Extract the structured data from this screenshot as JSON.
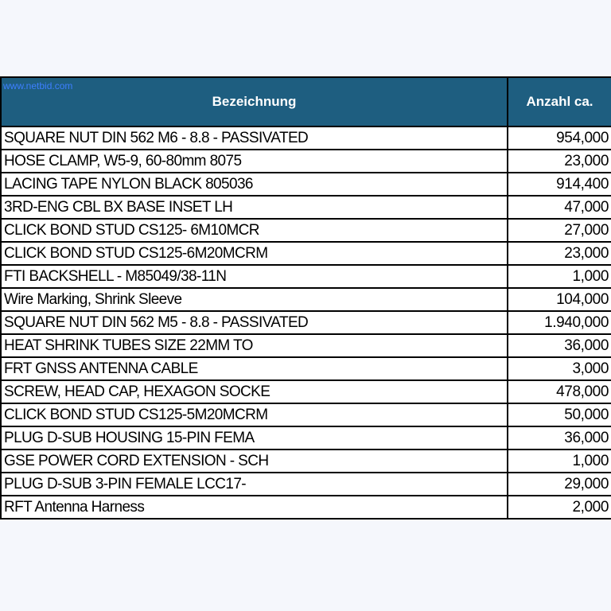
{
  "watermark": "www.netbid.com",
  "table": {
    "headers": {
      "name": "Bezeichnung",
      "quantity": "Anzahl ca."
    },
    "rows": [
      {
        "name": "SQUARE NUT DIN 562 M6 - 8.8 - PASSIVATED",
        "quantity": "954,000"
      },
      {
        "name": "HOSE CLAMP, W5-9, 60-80mm 8075",
        "quantity": "23,000"
      },
      {
        "name": "LACING TAPE NYLON BLACK 805036",
        "quantity": "914,400"
      },
      {
        "name": "3RD-ENG CBL BX BASE INSET LH",
        "quantity": "47,000"
      },
      {
        "name": "CLICK BOND STUD CS125- 6M10MCR",
        "quantity": "27,000"
      },
      {
        "name": "CLICK BOND STUD CS125-6M20MCRM",
        "quantity": "23,000"
      },
      {
        "name": "FTI BACKSHELL - M85049/38-11N",
        "quantity": "1,000"
      },
      {
        "name": "Wire Marking, Shrink Sleeve",
        "quantity": "104,000"
      },
      {
        "name": "SQUARE NUT DIN 562 M5 - 8.8 - PASSIVATED",
        "quantity": "1.940,000"
      },
      {
        "name": "HEAT SHRINK TUBES SIZE 22MM TO",
        "quantity": "36,000"
      },
      {
        "name": "FRT GNSS ANTENNA CABLE",
        "quantity": "3,000"
      },
      {
        "name": "SCREW, HEAD CAP, HEXAGON SOCKE",
        "quantity": "478,000"
      },
      {
        "name": "CLICK BOND STUD CS125-5M20MCRM",
        "quantity": "50,000"
      },
      {
        "name": "PLUG D-SUB HOUSING 15-PIN FEMA",
        "quantity": "36,000"
      },
      {
        "name": "GSE POWER CORD EXTENSION - SCH",
        "quantity": "1,000"
      },
      {
        "name": "PLUG D-SUB 3-PIN FEMALE LCC17-",
        "quantity": "29,000"
      },
      {
        "name": "RFT Antenna Harness",
        "quantity": "2,000"
      }
    ]
  },
  "colors": {
    "header_background": "#1e5e80",
    "header_text": "#ffffff",
    "watermark": "#3d7fff",
    "page_background": "#f5f7fc",
    "grid_lines": "#000000"
  }
}
